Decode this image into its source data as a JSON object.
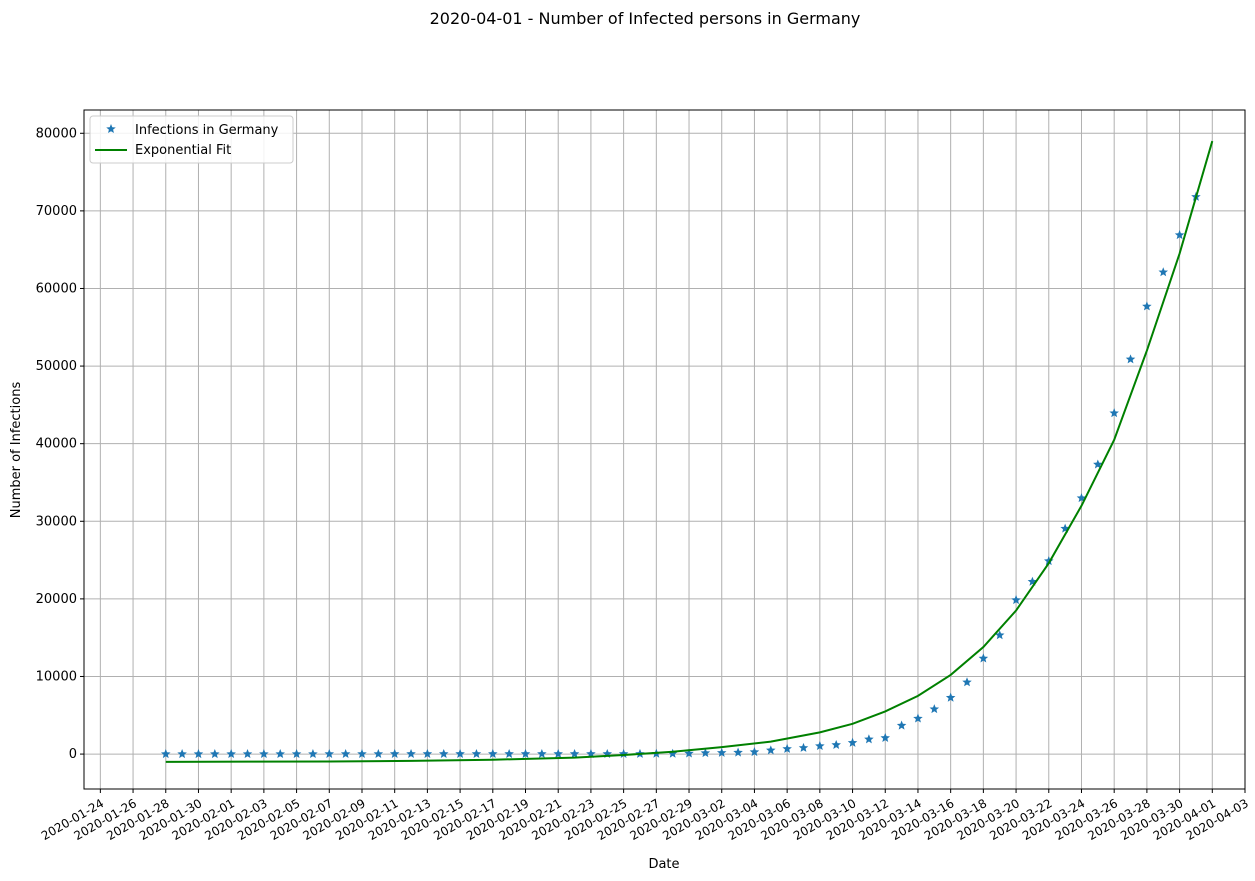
{
  "chart_data": {
    "type": "line",
    "title": "2020-04-01 - Number of Infected persons in Germany",
    "xlabel": "Date",
    "ylabel": "Number of Infections",
    "xlim": [
      "2020-01-23",
      "2020-04-03"
    ],
    "ylim": [
      -4500,
      83000
    ],
    "grid": true,
    "legend_position": "top-left",
    "x_ticks": [
      "2020-01-24",
      "2020-01-26",
      "2020-01-28",
      "2020-01-30",
      "2020-02-01",
      "2020-02-03",
      "2020-02-05",
      "2020-02-07",
      "2020-02-09",
      "2020-02-11",
      "2020-02-13",
      "2020-02-15",
      "2020-02-17",
      "2020-02-19",
      "2020-02-21",
      "2020-02-23",
      "2020-02-25",
      "2020-02-27",
      "2020-02-29",
      "2020-03-02",
      "2020-03-04",
      "2020-03-06",
      "2020-03-08",
      "2020-03-10",
      "2020-03-12",
      "2020-03-14",
      "2020-03-16",
      "2020-03-18",
      "2020-03-20",
      "2020-03-22",
      "2020-03-24",
      "2020-03-26",
      "2020-03-28",
      "2020-03-30",
      "2020-04-01",
      "2020-04-03"
    ],
    "y_ticks": [
      0,
      10000,
      20000,
      30000,
      40000,
      50000,
      60000,
      70000,
      80000
    ],
    "series": [
      {
        "name": "Infections in Germany",
        "style": "marker",
        "color": "#1f77b4",
        "x": [
          "2020-01-28",
          "2020-01-29",
          "2020-01-30",
          "2020-01-31",
          "2020-02-01",
          "2020-02-02",
          "2020-02-03",
          "2020-02-04",
          "2020-02-05",
          "2020-02-06",
          "2020-02-07",
          "2020-02-08",
          "2020-02-09",
          "2020-02-10",
          "2020-02-11",
          "2020-02-12",
          "2020-02-13",
          "2020-02-14",
          "2020-02-15",
          "2020-02-16",
          "2020-02-17",
          "2020-02-18",
          "2020-02-19",
          "2020-02-20",
          "2020-02-21",
          "2020-02-22",
          "2020-02-23",
          "2020-02-24",
          "2020-02-25",
          "2020-02-26",
          "2020-02-27",
          "2020-02-28",
          "2020-02-29",
          "2020-03-01",
          "2020-03-02",
          "2020-03-03",
          "2020-03-04",
          "2020-03-05",
          "2020-03-06",
          "2020-03-07",
          "2020-03-08",
          "2020-03-09",
          "2020-03-10",
          "2020-03-11",
          "2020-03-12",
          "2020-03-13",
          "2020-03-14",
          "2020-03-15",
          "2020-03-16",
          "2020-03-17",
          "2020-03-18",
          "2020-03-19",
          "2020-03-20",
          "2020-03-21",
          "2020-03-22",
          "2020-03-23",
          "2020-03-24",
          "2020-03-25",
          "2020-03-26",
          "2020-03-27",
          "2020-03-28",
          "2020-03-29",
          "2020-03-30",
          "2020-03-31"
        ],
        "values": [
          4,
          4,
          4,
          5,
          8,
          10,
          12,
          12,
          12,
          12,
          13,
          13,
          14,
          14,
          16,
          16,
          16,
          16,
          16,
          16,
          16,
          16,
          16,
          16,
          16,
          16,
          16,
          16,
          17,
          27,
          46,
          48,
          79,
          130,
          159,
          196,
          262,
          482,
          670,
          799,
          1040,
          1176,
          1457,
          1908,
          2078,
          3675,
          4585,
          5795,
          7272,
          9257,
          12327,
          15320,
          19848,
          22213,
          24873,
          29056,
          32986,
          37323,
          43938,
          50871,
          57695,
          62095,
          66885,
          71808
        ]
      },
      {
        "name": "Exponential Fit",
        "style": "line",
        "color": "#008000",
        "x": [
          "2020-01-28",
          "2020-02-02",
          "2020-02-07",
          "2020-02-12",
          "2020-02-17",
          "2020-02-22",
          "2020-02-25",
          "2020-02-28",
          "2020-03-02",
          "2020-03-05",
          "2020-03-08",
          "2020-03-10",
          "2020-03-12",
          "2020-03-14",
          "2020-03-16",
          "2020-03-18",
          "2020-03-20",
          "2020-03-22",
          "2020-03-24",
          "2020-03-26",
          "2020-03-28",
          "2020-03-30",
          "2020-04-01"
        ],
        "values": [
          -1000,
          -980,
          -950,
          -880,
          -730,
          -450,
          -120,
          300,
          900,
          1600,
          2800,
          3900,
          5500,
          7500,
          10200,
          13800,
          18500,
          24600,
          32000,
          40500,
          52000,
          64500,
          79000
        ]
      }
    ]
  }
}
